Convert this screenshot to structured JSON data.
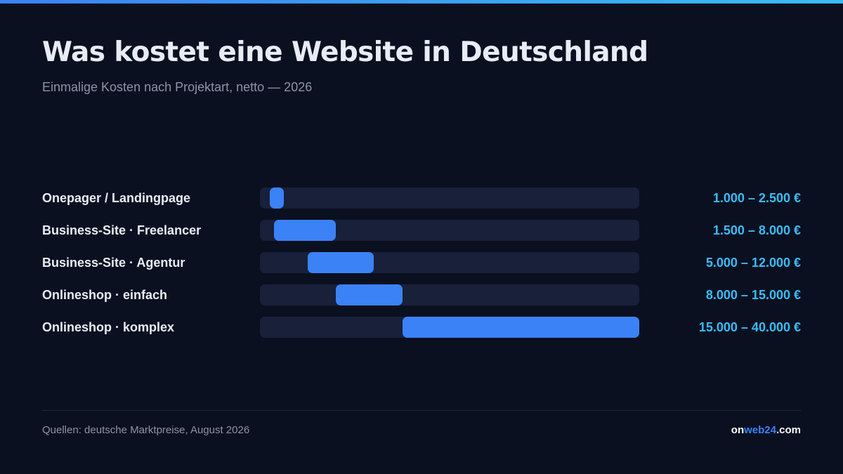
{
  "header": {
    "title": "Was kostet eine Website in Deutschland",
    "subtitle": "Einmalige Kosten nach Projektart, netto — 2026"
  },
  "chart_data": {
    "type": "bar",
    "title": "Was kostet eine Website in Deutschland",
    "subtitle": "Einmalige Kosten nach Projektart, netto — 2026",
    "orientation": "horizontal-range",
    "xlim": [
      0,
      40000
    ],
    "unit": "€",
    "categories": [
      "Onepager / Landingpage",
      "Business-Site · Freelancer",
      "Business-Site · Agentur",
      "Onlineshop · einfach",
      "Onlineshop · komplex"
    ],
    "ranges": [
      {
        "min": 1000,
        "max": 2500,
        "label": "1.000 – 2.500 €"
      },
      {
        "min": 1500,
        "max": 8000,
        "label": "1.500 – 8.000 €"
      },
      {
        "min": 5000,
        "max": 12000,
        "label": "5.000 – 12.000 €"
      },
      {
        "min": 8000,
        "max": 15000,
        "label": "8.000 – 15.000 €"
      },
      {
        "min": 15000,
        "max": 40000,
        "label": "15.000 – 40.000 €"
      }
    ],
    "grid": false,
    "legend": "none"
  },
  "footer": {
    "source": "Quellen: deutsche Marktpreise, August 2026",
    "brand_parts": [
      "on",
      "web24",
      ".com"
    ]
  },
  "colors": {
    "background": "#0b1020",
    "track": "#18203a",
    "bar": "#3b82f6",
    "value_text": "#38bdf8",
    "brand_accent": "#3b82f6"
  }
}
